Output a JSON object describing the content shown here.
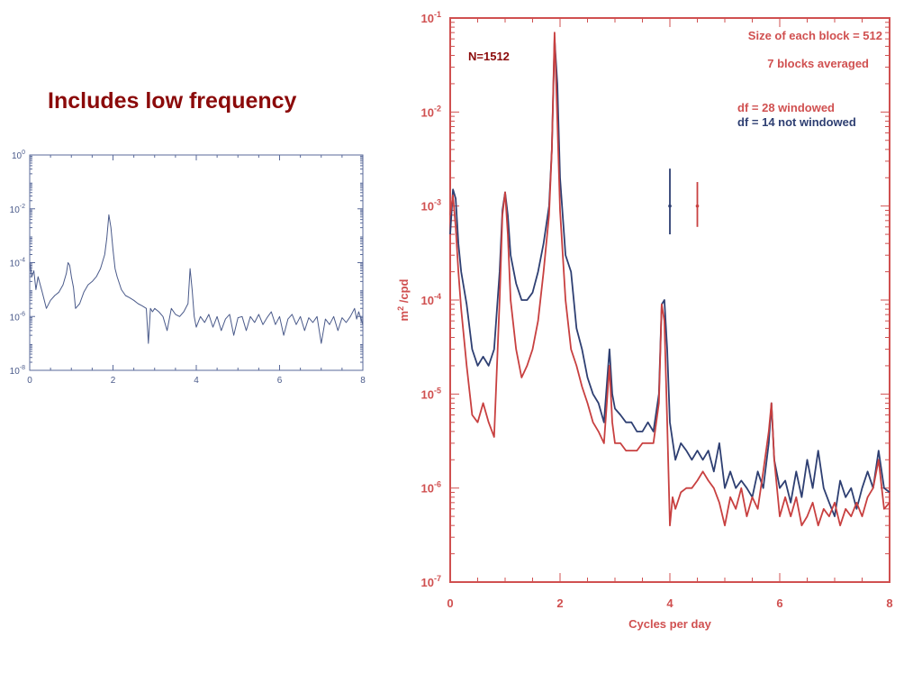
{
  "heading": "Includes low frequency",
  "colors": {
    "red": "#c84040",
    "blue": "#2e3f72",
    "heading": "#8b0a0a",
    "axis": "#d05050"
  },
  "chart_data": [
    {
      "type": "line",
      "title": "",
      "xlabel": "",
      "ylabel": "",
      "xlim": [
        0,
        8
      ],
      "ylim": [
        1e-08,
        1
      ],
      "yscale": "log",
      "x_ticks": [
        "0",
        "2",
        "4",
        "6",
        "8"
      ],
      "y_ticks": [
        {
          "base": "10",
          "exp": "0"
        },
        {
          "base": "10",
          "exp": "-2"
        },
        {
          "base": "10",
          "exp": "-4"
        },
        {
          "base": "10",
          "exp": "-6"
        },
        {
          "base": "10",
          "exp": "-8"
        }
      ],
      "series": [
        {
          "color": "#4a5a8a",
          "x": [
            0.0,
            0.05,
            0.1,
            0.15,
            0.2,
            0.3,
            0.4,
            0.5,
            0.6,
            0.7,
            0.8,
            0.88,
            0.92,
            0.96,
            1.0,
            1.05,
            1.1,
            1.2,
            1.3,
            1.4,
            1.5,
            1.6,
            1.7,
            1.8,
            1.85,
            1.9,
            1.95,
            2.0,
            2.05,
            2.1,
            2.2,
            2.3,
            2.4,
            2.5,
            2.6,
            2.7,
            2.8,
            2.85,
            2.9,
            2.95,
            3.0,
            3.1,
            3.2,
            3.3,
            3.4,
            3.5,
            3.6,
            3.7,
            3.8,
            3.85,
            3.9,
            3.95,
            4.0,
            4.1,
            4.2,
            4.3,
            4.4,
            4.5,
            4.6,
            4.7,
            4.8,
            4.9,
            5.0,
            5.1,
            5.2,
            5.3,
            5.4,
            5.5,
            5.6,
            5.7,
            5.8,
            5.9,
            6.0,
            6.1,
            6.2,
            6.3,
            6.4,
            6.5,
            6.6,
            6.7,
            6.8,
            6.9,
            7.0,
            7.1,
            7.2,
            7.3,
            7.4,
            7.5,
            7.6,
            7.7,
            7.8,
            7.85,
            7.9,
            8.0
          ],
          "y": [
            0.0001,
            3e-05,
            5e-05,
            1e-05,
            3e-05,
            8e-06,
            2e-06,
            4e-06,
            6e-06,
            8e-06,
            1.5e-05,
            4e-05,
            0.0001,
            8e-05,
            3e-05,
            1.2e-05,
            2e-06,
            3e-06,
            8e-06,
            1.5e-05,
            2e-05,
            3e-05,
            6e-05,
            0.0002,
            0.0008,
            0.006,
            0.002,
            0.0003,
            6e-05,
            3e-05,
            1e-05,
            6e-06,
            5e-06,
            4e-06,
            3e-06,
            2.5e-06,
            2e-06,
            1e-07,
            2e-06,
            1.5e-06,
            2e-06,
            1.5e-06,
            1e-06,
            3e-07,
            2e-06,
            1.2e-06,
            1e-06,
            1.5e-06,
            3e-06,
            6e-05,
            1e-05,
            1e-06,
            4e-07,
            1e-06,
            6e-07,
            1.2e-06,
            4e-07,
            1e-06,
            3e-07,
            8e-07,
            1.2e-06,
            2e-07,
            9e-07,
            1e-06,
            3e-07,
            1e-06,
            6e-07,
            1.2e-06,
            5e-07,
            9e-07,
            1.5e-06,
            5e-07,
            1e-06,
            2e-07,
            8e-07,
            1.2e-06,
            5e-07,
            1e-06,
            3e-07,
            9e-07,
            6e-07,
            1e-06,
            1e-07,
            8e-07,
            5e-07,
            1e-06,
            3e-07,
            9e-07,
            6e-07,
            1e-06,
            2e-06,
            8e-07,
            1.5e-06,
            5e-07
          ]
        }
      ]
    },
    {
      "type": "line",
      "title": "",
      "xlabel": "Cycles per day",
      "ylabel_parts": [
        "m",
        "2",
        " /cpd"
      ],
      "xlim": [
        0,
        8
      ],
      "ylim": [
        1e-07,
        0.1
      ],
      "yscale": "log",
      "x_ticks": [
        "0",
        "2",
        "4",
        "6",
        "8"
      ],
      "y_ticks": [
        {
          "base": "10",
          "exp": "-1"
        },
        {
          "base": "10",
          "exp": "-2"
        },
        {
          "base": "10",
          "exp": "-3"
        },
        {
          "base": "10",
          "exp": "-4"
        },
        {
          "base": "10",
          "exp": "-5"
        },
        {
          "base": "10",
          "exp": "-6"
        },
        {
          "base": "10",
          "exp": "-7"
        }
      ],
      "annotations": {
        "n_label": "N=1512",
        "block_size": "Size of each block =  512",
        "blocks_averaged": "7 blocks averaged",
        "df_windowed": "df =  28 windowed",
        "df_not_windowed": "df = 14 not windowed"
      },
      "error_bars": [
        {
          "color": "blue",
          "x": 4.0,
          "y_center": 0.001,
          "y_low": 0.0005,
          "y_high": 0.0025
        },
        {
          "color": "red",
          "x": 4.5,
          "y_center": 0.001,
          "y_low": 0.0006,
          "y_high": 0.0018
        }
      ],
      "series": [
        {
          "name": "not windowed",
          "color": "#2e3f72",
          "x": [
            0.0,
            0.05,
            0.1,
            0.15,
            0.2,
            0.3,
            0.4,
            0.5,
            0.6,
            0.7,
            0.8,
            0.9,
            0.95,
            1.0,
            1.05,
            1.1,
            1.2,
            1.3,
            1.4,
            1.5,
            1.6,
            1.7,
            1.8,
            1.85,
            1.9,
            1.95,
            2.0,
            2.1,
            2.2,
            2.3,
            2.4,
            2.5,
            2.6,
            2.7,
            2.8,
            2.9,
            2.95,
            3.0,
            3.1,
            3.2,
            3.3,
            3.4,
            3.5,
            3.6,
            3.7,
            3.8,
            3.85,
            3.9,
            3.95,
            4.0,
            4.1,
            4.2,
            4.3,
            4.4,
            4.5,
            4.6,
            4.7,
            4.8,
            4.9,
            5.0,
            5.1,
            5.2,
            5.3,
            5.4,
            5.5,
            5.6,
            5.7,
            5.8,
            5.85,
            5.9,
            6.0,
            6.1,
            6.2,
            6.3,
            6.4,
            6.5,
            6.6,
            6.7,
            6.8,
            6.9,
            7.0,
            7.1,
            7.2,
            7.3,
            7.4,
            7.5,
            7.6,
            7.7,
            7.8,
            7.9,
            8.0
          ],
          "y": [
            0.0005,
            0.0015,
            0.0012,
            0.0004,
            0.0002,
            9e-05,
            3e-05,
            2e-05,
            2.5e-05,
            2e-05,
            3e-05,
            0.0002,
            0.0009,
            0.0014,
            0.0008,
            0.0003,
            0.00015,
            0.0001,
            0.0001,
            0.00012,
            0.0002,
            0.0004,
            0.001,
            0.004,
            0.06,
            0.02,
            0.002,
            0.0003,
            0.0002,
            5e-05,
            3e-05,
            1.5e-05,
            1e-05,
            8e-06,
            5e-06,
            3e-05,
            1e-05,
            7e-06,
            6e-06,
            5e-06,
            5e-06,
            4e-06,
            4e-06,
            5e-06,
            4e-06,
            1e-05,
            9e-05,
            0.0001,
            3e-05,
            5e-06,
            2e-06,
            3e-06,
            2.5e-06,
            2e-06,
            2.5e-06,
            2e-06,
            2.5e-06,
            1.5e-06,
            3e-06,
            1e-06,
            1.5e-06,
            1e-06,
            1.2e-06,
            1e-06,
            8e-07,
            1.5e-06,
            1e-06,
            3e-06,
            8e-06,
            2e-06,
            1e-06,
            1.2e-06,
            7e-07,
            1.5e-06,
            8e-07,
            2e-06,
            1e-06,
            2.5e-06,
            1e-06,
            7e-07,
            5e-07,
            1.2e-06,
            8e-07,
            1e-06,
            6e-07,
            1e-06,
            1.5e-06,
            1e-06,
            2.5e-06,
            1e-06,
            9e-07
          ]
        },
        {
          "name": "windowed",
          "color": "#c84040",
          "x": [
            0.0,
            0.05,
            0.1,
            0.15,
            0.2,
            0.3,
            0.4,
            0.5,
            0.6,
            0.7,
            0.8,
            0.9,
            0.95,
            1.0,
            1.05,
            1.1,
            1.2,
            1.3,
            1.4,
            1.5,
            1.6,
            1.7,
            1.8,
            1.85,
            1.9,
            1.95,
            2.0,
            2.1,
            2.2,
            2.3,
            2.4,
            2.5,
            2.6,
            2.7,
            2.8,
            2.9,
            2.95,
            3.0,
            3.1,
            3.2,
            3.3,
            3.4,
            3.5,
            3.6,
            3.7,
            3.8,
            3.85,
            3.9,
            3.95,
            4.0,
            4.05,
            4.1,
            4.2,
            4.3,
            4.4,
            4.5,
            4.6,
            4.7,
            4.8,
            4.9,
            5.0,
            5.1,
            5.2,
            5.3,
            5.4,
            5.5,
            5.6,
            5.7,
            5.8,
            5.85,
            5.9,
            6.0,
            6.1,
            6.2,
            6.3,
            6.4,
            6.5,
            6.6,
            6.7,
            6.8,
            6.9,
            7.0,
            7.1,
            7.2,
            7.3,
            7.4,
            7.5,
            7.6,
            7.7,
            7.8,
            7.9,
            8.0
          ],
          "y": [
            0.0008,
            0.0013,
            0.0006,
            0.0002,
            8e-05,
            2e-05,
            6e-06,
            5e-06,
            8e-06,
            5e-06,
            3.5e-06,
            0.0001,
            0.0008,
            0.0014,
            0.0005,
            0.0001,
            3e-05,
            1.5e-05,
            2e-05,
            3e-05,
            6e-05,
            0.0002,
            0.0008,
            0.004,
            0.07,
            0.008,
            0.0009,
            0.0001,
            3e-05,
            2e-05,
            1.2e-05,
            8e-06,
            5e-06,
            4e-06,
            3e-06,
            2e-05,
            5e-06,
            3e-06,
            3e-06,
            2.5e-06,
            2.5e-06,
            2.5e-06,
            3e-06,
            3e-06,
            3e-06,
            8e-06,
            9e-05,
            6e-05,
            5e-06,
            4e-07,
            8e-07,
            6e-07,
            9e-07,
            1e-06,
            1e-06,
            1.2e-06,
            1.5e-06,
            1.2e-06,
            1e-06,
            7e-07,
            4e-07,
            8e-07,
            6e-07,
            1e-06,
            5e-07,
            8e-07,
            6e-07,
            1.5e-06,
            4e-06,
            8e-06,
            2e-06,
            5e-07,
            8e-07,
            5e-07,
            8e-07,
            4e-07,
            5e-07,
            7e-07,
            4e-07,
            6e-07,
            5e-07,
            7e-07,
            4e-07,
            6e-07,
            5e-07,
            7e-07,
            5e-07,
            8e-07,
            1e-06,
            2e-06,
            6e-07,
            7e-07
          ]
        }
      ]
    }
  ]
}
